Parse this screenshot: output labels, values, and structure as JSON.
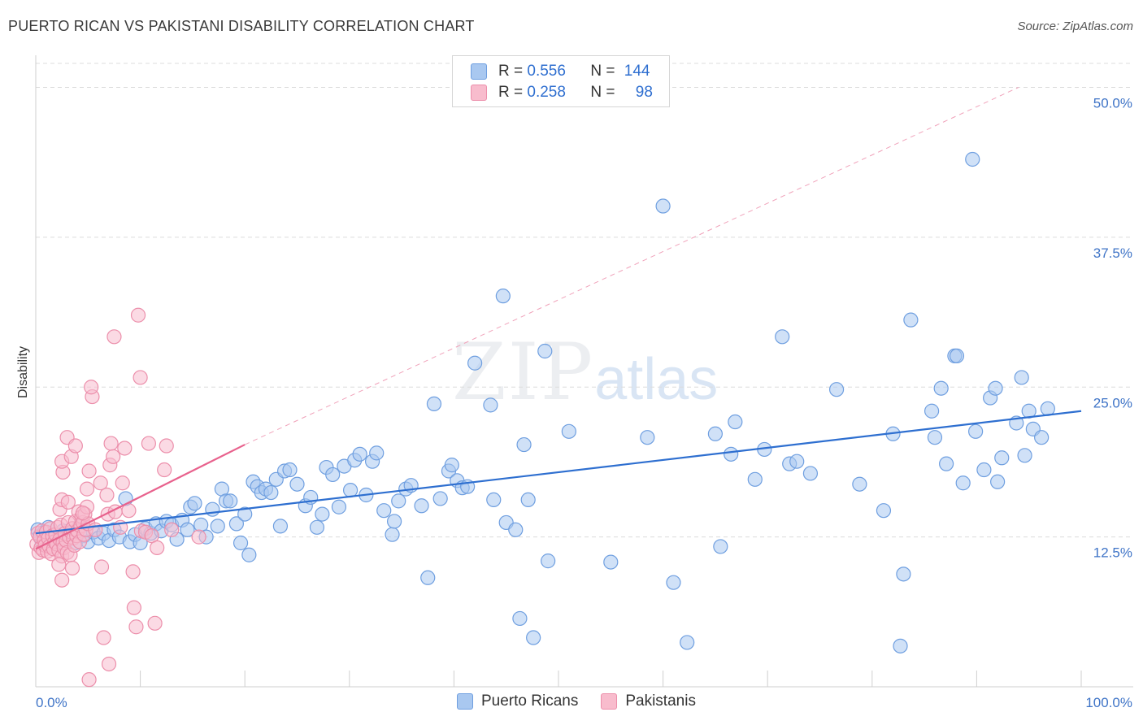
{
  "title": "PUERTO RICAN VS PAKISTANI DISABILITY CORRELATION CHART",
  "source": "Source: ZipAtlas.com",
  "watermark": {
    "zip": "ZIP",
    "atlas": "atlas"
  },
  "legend": {
    "rows": [
      {
        "r_label": "R = ",
        "r_value": "0.556",
        "n_label": "N = ",
        "n_value": "144",
        "color": "#a9c8f0",
        "border": "#6f9fe0"
      },
      {
        "r_label": "R = ",
        "r_value": "0.258",
        "n_label": "N = ",
        "n_value": "98",
        "color": "#f8bccd",
        "border": "#ec8fab"
      }
    ]
  },
  "bottom_legend": [
    {
      "label": "Puerto Ricans",
      "color": "#a9c8f0",
      "border": "#6f9fe0"
    },
    {
      "label": "Pakistanis",
      "color": "#f8bccd",
      "border": "#ec8fab"
    }
  ],
  "chart_data": {
    "type": "scatter",
    "title": "PUERTO RICAN VS PAKISTANI DISABILITY CORRELATION CHART",
    "xlabel": "",
    "ylabel": "Disability",
    "xlim": [
      0,
      100
    ],
    "ylim": [
      0,
      52
    ],
    "x_tick_labels": [
      "0.0%",
      "100.0%"
    ],
    "y_ticks": [
      12.5,
      25.0,
      37.5,
      50.0
    ],
    "y_tick_labels": [
      "12.5%",
      "25.0%",
      "37.5%",
      "50.0%"
    ],
    "grid": "horizontal dashed",
    "legend_position": "top-center",
    "series": [
      {
        "name": "Puerto Ricans",
        "color": "#6f9fe0",
        "fill": "#a9c8f0",
        "trend": {
          "x": [
            0,
            100
          ],
          "y": [
            12.8,
            23.0
          ],
          "color": "#2e6fd0"
        },
        "points": [
          [
            0.2,
            13.1
          ],
          [
            0.4,
            12.6
          ],
          [
            0.6,
            12.1
          ],
          [
            0.8,
            12.9
          ],
          [
            1.0,
            12.4
          ],
          [
            1.2,
            13.3
          ],
          [
            1.5,
            12.2
          ],
          [
            1.8,
            12.7
          ],
          [
            2.0,
            11.9
          ],
          [
            2.3,
            12.5
          ],
          [
            2.6,
            13.0
          ],
          [
            3.0,
            12.3
          ],
          [
            3.4,
            12.8
          ],
          [
            3.8,
            12.0
          ],
          [
            4.2,
            13.4
          ],
          [
            4.6,
            12.6
          ],
          [
            5.0,
            12.1
          ],
          [
            5.5,
            12.9
          ],
          [
            6.0,
            12.4
          ],
          [
            6.5,
            12.8
          ],
          [
            7.0,
            12.2
          ],
          [
            7.5,
            13.1
          ],
          [
            8.0,
            12.5
          ],
          [
            8.6,
            15.7
          ],
          [
            9.0,
            12.1
          ],
          [
            9.5,
            12.7
          ],
          [
            10.0,
            12.0
          ],
          [
            10.5,
            13.2
          ],
          [
            11.0,
            12.8
          ],
          [
            11.5,
            13.6
          ],
          [
            12.0,
            13.0
          ],
          [
            12.5,
            13.8
          ],
          [
            13.0,
            13.5
          ],
          [
            13.5,
            12.3
          ],
          [
            14.0,
            13.9
          ],
          [
            14.5,
            13.1
          ],
          [
            14.8,
            15.0
          ],
          [
            15.2,
            15.3
          ],
          [
            15.8,
            13.5
          ],
          [
            16.3,
            12.5
          ],
          [
            16.9,
            14.8
          ],
          [
            17.4,
            13.4
          ],
          [
            17.8,
            16.5
          ],
          [
            18.2,
            15.5
          ],
          [
            18.6,
            15.5
          ],
          [
            19.2,
            13.6
          ],
          [
            19.6,
            12.0
          ],
          [
            20.0,
            14.4
          ],
          [
            20.4,
            11.0
          ],
          [
            20.8,
            17.1
          ],
          [
            21.2,
            16.7
          ],
          [
            21.6,
            16.2
          ],
          [
            22.0,
            16.5
          ],
          [
            22.5,
            16.2
          ],
          [
            23.0,
            17.3
          ],
          [
            23.4,
            13.4
          ],
          [
            23.8,
            18.0
          ],
          [
            24.3,
            18.1
          ],
          [
            25.0,
            16.9
          ],
          [
            25.8,
            15.1
          ],
          [
            26.3,
            15.8
          ],
          [
            26.9,
            13.3
          ],
          [
            27.4,
            14.4
          ],
          [
            27.8,
            18.3
          ],
          [
            28.4,
            17.7
          ],
          [
            29.0,
            15.0
          ],
          [
            29.5,
            18.4
          ],
          [
            30.1,
            16.4
          ],
          [
            30.5,
            18.9
          ],
          [
            31.0,
            19.4
          ],
          [
            31.6,
            16.0
          ],
          [
            32.2,
            18.8
          ],
          [
            32.6,
            19.5
          ],
          [
            33.3,
            14.7
          ],
          [
            34.1,
            12.7
          ],
          [
            34.3,
            13.8
          ],
          [
            34.7,
            15.5
          ],
          [
            35.4,
            16.5
          ],
          [
            35.9,
            16.8
          ],
          [
            36.9,
            15.1
          ],
          [
            37.5,
            9.1
          ],
          [
            38.1,
            23.6
          ],
          [
            38.7,
            15.7
          ],
          [
            39.5,
            18.0
          ],
          [
            39.8,
            18.5
          ],
          [
            40.3,
            17.2
          ],
          [
            40.8,
            16.6
          ],
          [
            41.3,
            16.7
          ],
          [
            42.0,
            27.0
          ],
          [
            43.5,
            23.5
          ],
          [
            43.8,
            15.6
          ],
          [
            44.7,
            32.6
          ],
          [
            45.0,
            13.7
          ],
          [
            45.9,
            13.1
          ],
          [
            46.3,
            5.7
          ],
          [
            46.7,
            20.2
          ],
          [
            47.1,
            15.6
          ],
          [
            47.6,
            4.1
          ],
          [
            48.7,
            28.0
          ],
          [
            49.0,
            10.5
          ],
          [
            51.0,
            21.3
          ],
          [
            55.0,
            10.4
          ],
          [
            58.5,
            20.8
          ],
          [
            60.0,
            40.1
          ],
          [
            61.0,
            8.7
          ],
          [
            62.3,
            3.7
          ],
          [
            65.0,
            21.1
          ],
          [
            65.5,
            11.7
          ],
          [
            66.5,
            19.4
          ],
          [
            66.9,
            22.1
          ],
          [
            68.8,
            17.3
          ],
          [
            69.7,
            19.8
          ],
          [
            71.4,
            29.2
          ],
          [
            72.1,
            18.6
          ],
          [
            72.8,
            18.8
          ],
          [
            74.1,
            17.8
          ],
          [
            76.6,
            24.8
          ],
          [
            78.8,
            16.9
          ],
          [
            81.1,
            14.7
          ],
          [
            82.0,
            21.1
          ],
          [
            82.7,
            3.4
          ],
          [
            83.0,
            9.4
          ],
          [
            83.7,
            30.6
          ],
          [
            85.7,
            23.0
          ],
          [
            86.0,
            20.8
          ],
          [
            86.6,
            24.9
          ],
          [
            87.1,
            18.6
          ],
          [
            87.9,
            27.6
          ],
          [
            88.1,
            27.6
          ],
          [
            88.7,
            17.0
          ],
          [
            89.6,
            44.0
          ],
          [
            89.9,
            21.3
          ],
          [
            90.7,
            18.1
          ],
          [
            91.3,
            24.1
          ],
          [
            91.8,
            24.9
          ],
          [
            92.0,
            17.1
          ],
          [
            92.4,
            19.1
          ],
          [
            93.8,
            22.0
          ],
          [
            94.3,
            25.8
          ],
          [
            94.6,
            19.3
          ],
          [
            95.0,
            23.0
          ],
          [
            95.4,
            21.5
          ],
          [
            96.2,
            20.8
          ],
          [
            96.8,
            23.2
          ]
        ]
      },
      {
        "name": "Pakistanis",
        "color": "#ec8fab",
        "fill": "#f8bccd",
        "trend": {
          "x": [
            0,
            20
          ],
          "y": [
            11.5,
            20.2
          ],
          "color": "#e8628d",
          "extension": {
            "x": [
              20,
              94
            ],
            "y": [
              20.2,
              50.0
            ]
          }
        },
        "points": [
          [
            0.1,
            11.9
          ],
          [
            0.2,
            12.8
          ],
          [
            0.3,
            11.2
          ],
          [
            0.4,
            12.5
          ],
          [
            0.5,
            11.6
          ],
          [
            0.6,
            13.0
          ],
          [
            0.7,
            11.4
          ],
          [
            0.8,
            12.2
          ],
          [
            0.9,
            11.8
          ],
          [
            1.0,
            12.9
          ],
          [
            1.1,
            11.3
          ],
          [
            1.2,
            12.4
          ],
          [
            1.3,
            11.7
          ],
          [
            1.4,
            13.2
          ],
          [
            1.5,
            11.1
          ],
          [
            1.6,
            12.6
          ],
          [
            1.7,
            11.5
          ],
          [
            1.8,
            12.1
          ],
          [
            1.9,
            12.7
          ],
          [
            2.0,
            11.9
          ],
          [
            2.1,
            13.3
          ],
          [
            2.2,
            11.4
          ],
          [
            2.3,
            12.3
          ],
          [
            2.4,
            13.5
          ],
          [
            2.5,
            10.9
          ],
          [
            2.6,
            12.0
          ],
          [
            2.7,
            11.6
          ],
          [
            2.8,
            12.8
          ],
          [
            2.9,
            12.2
          ],
          [
            3.0,
            11.2
          ],
          [
            3.1,
            13.7
          ],
          [
            3.2,
            12.5
          ],
          [
            3.3,
            11.0
          ],
          [
            3.4,
            12.9
          ],
          [
            3.5,
            13.2
          ],
          [
            3.6,
            12.4
          ],
          [
            3.7,
            11.8
          ],
          [
            3.8,
            13.8
          ],
          [
            3.9,
            12.6
          ],
          [
            4.0,
            13.0
          ],
          [
            4.1,
            14.6
          ],
          [
            4.2,
            12.1
          ],
          [
            4.3,
            13.4
          ],
          [
            4.4,
            14.2
          ],
          [
            4.5,
            13.7
          ],
          [
            4.6,
            12.7
          ],
          [
            4.7,
            14.4
          ],
          [
            4.8,
            13.1
          ],
          [
            4.9,
            15.0
          ],
          [
            5.0,
            13.6
          ],
          [
            2.3,
            14.8
          ],
          [
            2.5,
            15.6
          ],
          [
            2.6,
            17.9
          ],
          [
            2.5,
            18.8
          ],
          [
            3.0,
            20.8
          ],
          [
            3.1,
            15.4
          ],
          [
            2.2,
            10.2
          ],
          [
            2.5,
            8.9
          ],
          [
            3.5,
            9.9
          ],
          [
            3.4,
            19.2
          ],
          [
            3.8,
            20.1
          ],
          [
            4.5,
            14.5
          ],
          [
            4.9,
            16.5
          ],
          [
            5.1,
            18.0
          ],
          [
            5.4,
            24.2
          ],
          [
            5.3,
            25.0
          ],
          [
            5.7,
            13.1
          ],
          [
            6.2,
            17.0
          ],
          [
            6.3,
            10.0
          ],
          [
            6.5,
            4.1
          ],
          [
            6.8,
            16.0
          ],
          [
            6.9,
            14.4
          ],
          [
            7.0,
            1.9
          ],
          [
            7.1,
            18.5
          ],
          [
            7.2,
            20.3
          ],
          [
            7.4,
            19.2
          ],
          [
            7.5,
            29.2
          ],
          [
            7.6,
            14.6
          ],
          [
            8.1,
            13.3
          ],
          [
            8.3,
            17.0
          ],
          [
            8.5,
            19.9
          ],
          [
            8.9,
            14.7
          ],
          [
            9.3,
            9.6
          ],
          [
            9.4,
            6.6
          ],
          [
            9.6,
            5.0
          ],
          [
            9.8,
            31.0
          ],
          [
            10.0,
            25.8
          ],
          [
            10.1,
            13.0
          ],
          [
            10.5,
            12.9
          ],
          [
            10.8,
            20.3
          ],
          [
            11.1,
            12.6
          ],
          [
            11.4,
            5.3
          ],
          [
            11.6,
            11.6
          ],
          [
            12.3,
            18.1
          ],
          [
            12.5,
            20.1
          ],
          [
            13.0,
            13.1
          ],
          [
            15.6,
            12.5
          ],
          [
            5.1,
            0.6
          ]
        ]
      }
    ]
  }
}
